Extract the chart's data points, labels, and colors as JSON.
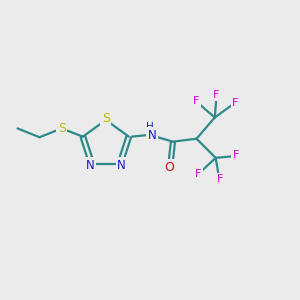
{
  "bg_color": "#ebebeb",
  "bond_color": "#2d8a8a",
  "S_color": "#bbbb00",
  "N_color": "#1818cc",
  "O_color": "#cc1010",
  "F_color": "#cc00cc",
  "line_width": 1.6,
  "figsize": [
    3.0,
    3.0
  ],
  "dpi": 100,
  "xlim": [
    0,
    10
  ],
  "ylim": [
    0,
    10
  ]
}
